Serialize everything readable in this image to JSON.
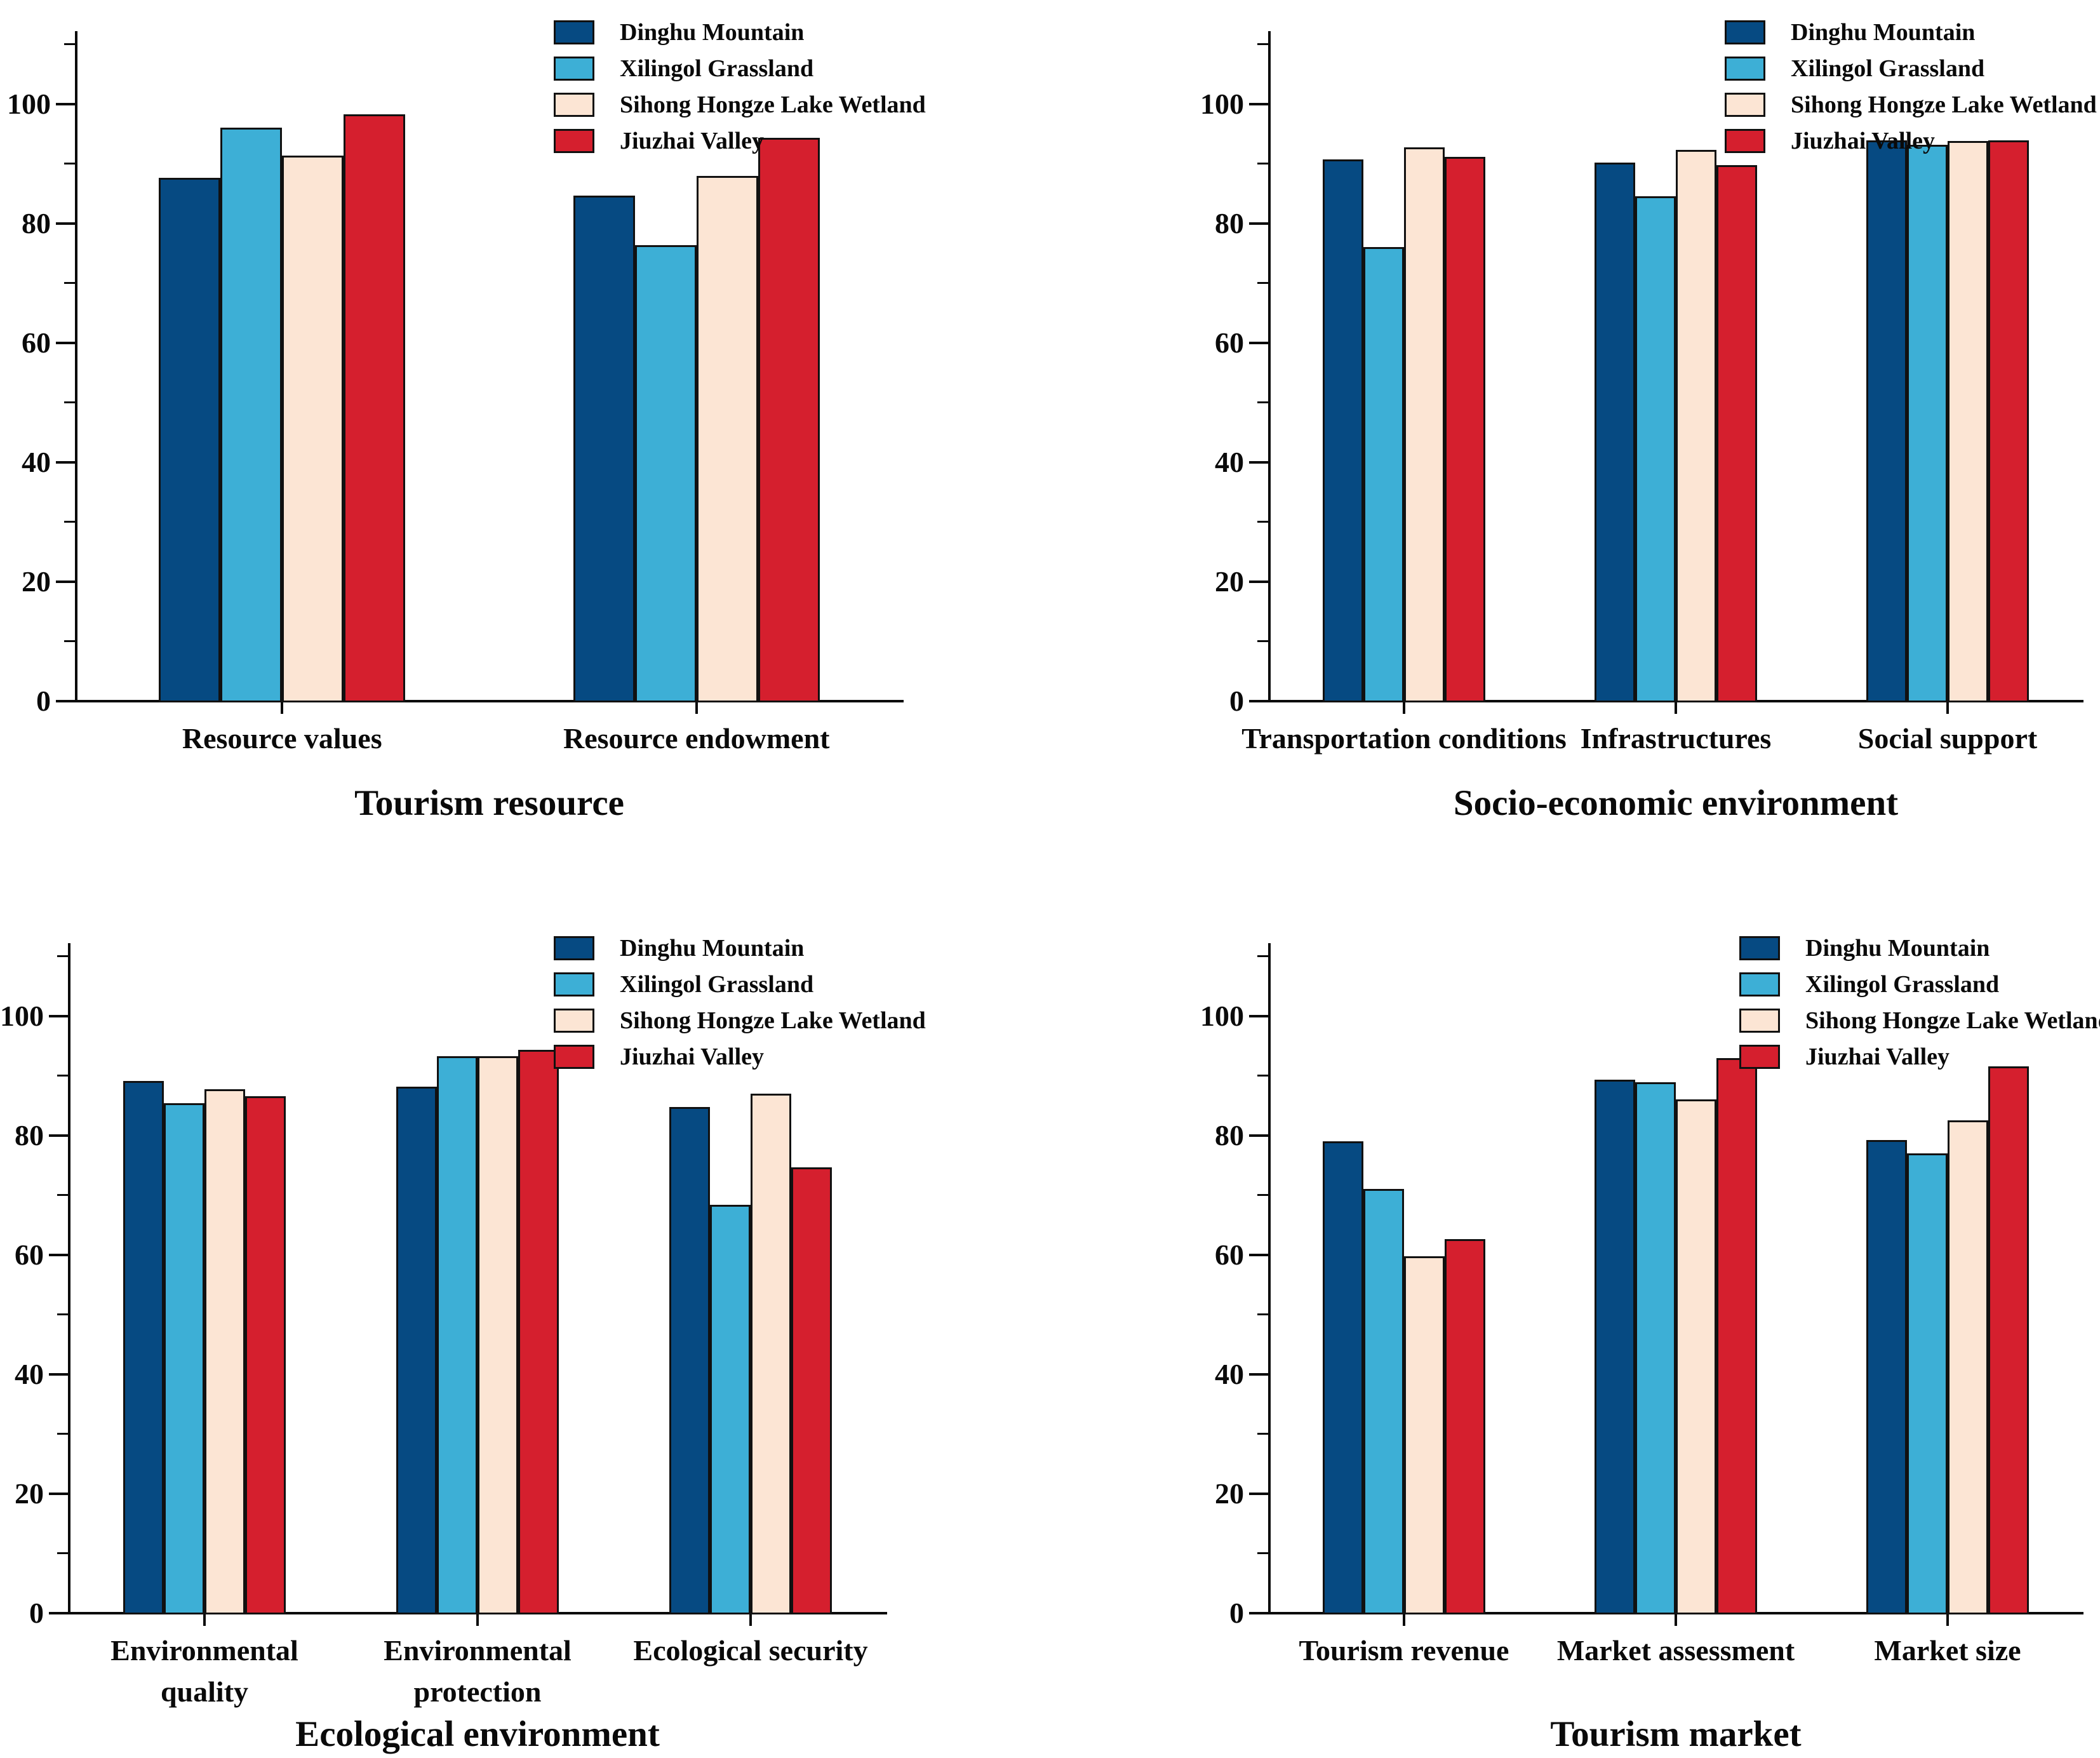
{
  "figure": {
    "background": "#ffffff",
    "axis_color": "#0a0a0a",
    "bar_outline_color": "#111111"
  },
  "series_colors": {
    "dinghu_mountain": "#064A82",
    "xilingol_grassland": "#3DAFD6",
    "sihong_hongze_lake_wetland": "#FCE5D4",
    "jiuzhai_valley": "#D51F2E"
  },
  "legend_labels": [
    "Dinghu Mountain",
    "Xilingol Grassland",
    "Sihong Hongze Lake Wetland",
    "Jiuzhai Valley"
  ],
  "chart_data": [
    {
      "id": "tourism-resource",
      "type": "bar",
      "title": "Tourism resource",
      "xlabel": "",
      "ylabel": "",
      "ylim": [
        0,
        112
      ],
      "yticks_major": [
        0,
        20,
        40,
        60,
        80,
        100
      ],
      "yticks_minor": [
        10,
        30,
        50,
        70,
        90,
        110
      ],
      "grid": false,
      "legend_position": "top-center",
      "categories": [
        "Resource values",
        "Resource endowment"
      ],
      "series": [
        {
          "name": "Dinghu Mountain",
          "color": "#064A82",
          "values": [
            87.4,
            84.5
          ]
        },
        {
          "name": "Xilingol Grassland",
          "color": "#3DAFD6",
          "values": [
            95.9,
            76.2
          ]
        },
        {
          "name": "Sihong Hongze Lake Wetland",
          "color": "#FCE5D4",
          "values": [
            91.2,
            87.8
          ]
        },
        {
          "name": "Jiuzhai Valley",
          "color": "#D51F2E",
          "values": [
            98.1,
            94.2
          ]
        }
      ]
    },
    {
      "id": "socio-economic-environment",
      "type": "bar",
      "title": "Socio-economic environment",
      "xlabel": "",
      "ylabel": "",
      "ylim": [
        0,
        112
      ],
      "yticks_major": [
        0,
        20,
        40,
        60,
        80,
        100
      ],
      "yticks_minor": [
        10,
        30,
        50,
        70,
        90,
        110
      ],
      "grid": false,
      "legend_position": "top-right",
      "categories": [
        "Transportation conditions",
        "Infrastructures",
        "Social support"
      ],
      "series": [
        {
          "name": "Dinghu Mountain",
          "color": "#064A82",
          "values": [
            90.5,
            90.0,
            93.7
          ]
        },
        {
          "name": "Xilingol Grassland",
          "color": "#3DAFD6",
          "values": [
            75.9,
            84.4,
            93.0
          ]
        },
        {
          "name": "Sihong Hongze Lake Wetland",
          "color": "#FCE5D4",
          "values": [
            92.6,
            92.1,
            93.6
          ]
        },
        {
          "name": "Jiuzhai Valley",
          "color": "#D51F2E",
          "values": [
            91.0,
            89.6,
            93.7
          ]
        }
      ]
    },
    {
      "id": "ecological-environment",
      "type": "bar",
      "title": "Ecological environment",
      "xlabel": "",
      "ylabel": "",
      "ylim": [
        0,
        112
      ],
      "yticks_major": [
        0,
        20,
        40,
        60,
        80,
        100
      ],
      "yticks_minor": [
        10,
        30,
        50,
        70,
        90,
        110
      ],
      "grid": false,
      "legend_position": "top-center",
      "categories": [
        "Environmental\nquality",
        "Environmental\nprotection",
        "Ecological security"
      ],
      "series": [
        {
          "name": "Dinghu Mountain",
          "color": "#064A82",
          "values": [
            88.9,
            88.0,
            84.6
          ]
        },
        {
          "name": "Xilingol Grassland",
          "color": "#3DAFD6",
          "values": [
            85.2,
            93.1,
            68.2
          ]
        },
        {
          "name": "Sihong Hongze Lake Wetland",
          "color": "#FCE5D4",
          "values": [
            87.6,
            93.1,
            86.8
          ]
        },
        {
          "name": "Jiuzhai Valley",
          "color": "#D51F2E",
          "values": [
            86.4,
            94.2,
            74.5
          ]
        }
      ]
    },
    {
      "id": "tourism-market",
      "type": "bar",
      "title": "Tourism market",
      "xlabel": "",
      "ylabel": "",
      "ylim": [
        0,
        112
      ],
      "yticks_major": [
        0,
        20,
        40,
        60,
        80,
        100
      ],
      "yticks_minor": [
        10,
        30,
        50,
        70,
        90,
        110
      ],
      "grid": false,
      "legend_position": "top-right",
      "categories": [
        "Tourism revenue",
        "Market assessment",
        "Market size"
      ],
      "series": [
        {
          "name": "Dinghu Mountain",
          "color": "#064A82",
          "values": [
            78.8,
            89.2,
            79.0
          ]
        },
        {
          "name": "Xilingol Grassland",
          "color": "#3DAFD6",
          "values": [
            70.9,
            88.7,
            76.8
          ]
        },
        {
          "name": "Sihong Hongze Lake Wetland",
          "color": "#FCE5D4",
          "values": [
            59.6,
            85.8,
            82.3
          ]
        },
        {
          "name": "Jiuzhai Valley",
          "color": "#D51F2E",
          "values": [
            62.4,
            92.8,
            91.4
          ]
        }
      ]
    }
  ]
}
